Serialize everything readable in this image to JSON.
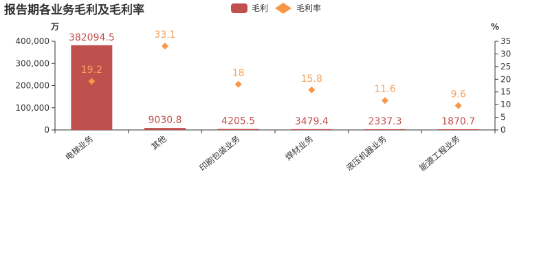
{
  "chart_data": {
    "type": "bar",
    "title": "报告期各业务毛利及毛利率",
    "categories": [
      "电梯业务",
      "其他",
      "印刷包装业务",
      "焊材业务",
      "液压机器业务",
      "能源工程业务"
    ],
    "series": [
      {
        "name": "毛利",
        "type": "bar",
        "axis": "left",
        "values": [
          382094.5,
          9030.8,
          4205.5,
          3479.4,
          2337.3,
          1870.7
        ],
        "labels": [
          "382094.5",
          "9030.8",
          "4205.5",
          "3479.4",
          "2337.3",
          "1870.7"
        ]
      },
      {
        "name": "毛利率",
        "type": "scatter",
        "marker": "diamond",
        "axis": "right",
        "values": [
          19.2,
          33.1,
          18,
          15.8,
          11.6,
          9.6
        ],
        "labels": [
          "19.2",
          "33.1",
          "18",
          "15.8",
          "11.6",
          "9.6"
        ]
      }
    ],
    "y_left": {
      "unit": "万",
      "ylim": [
        0,
        400000
      ],
      "ticks": [
        0,
        100000,
        200000,
        300000,
        400000
      ],
      "tick_labels": [
        "0",
        "100,000",
        "200,000",
        "300,000",
        "400,000"
      ]
    },
    "y_right": {
      "unit": "%",
      "ylim": [
        0,
        35
      ],
      "ticks": [
        0,
        5,
        10,
        15,
        20,
        25,
        30,
        35
      ],
      "tick_labels": [
        "0",
        "5",
        "10",
        "15",
        "20",
        "25",
        "30",
        "35"
      ]
    },
    "legend": "top-center",
    "grid": false
  },
  "colors": {
    "bar": "#c0504d",
    "bar_label": "#c0504d",
    "marker": "#f79646",
    "marker_label": "#f5a35c",
    "title": "#333333",
    "axis": "#333333",
    "tick_label": "#333333"
  }
}
